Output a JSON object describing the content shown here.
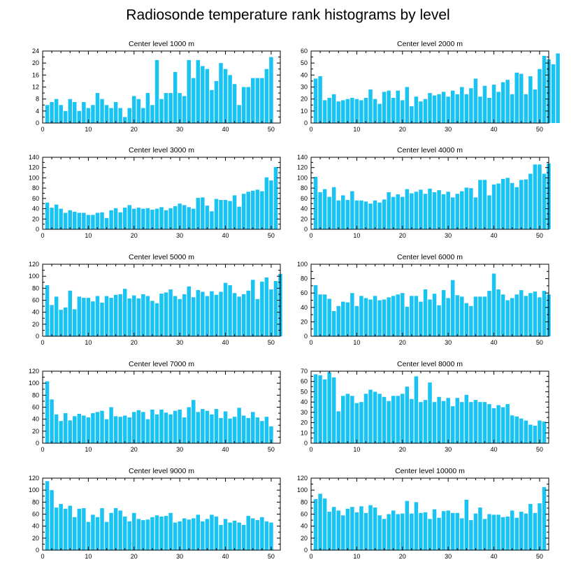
{
  "figure": {
    "title": "Radiosonde temperature rank histograms by level"
  },
  "colors": {
    "bar": "#1ac4f2",
    "axis": "#000000",
    "background": "#ffffff"
  },
  "chart_data": [
    {
      "type": "bar",
      "title": "Center level 1000 m",
      "x_ticks": [
        0,
        10,
        20,
        30,
        40,
        50
      ],
      "y_ticks": [
        0,
        4,
        8,
        12,
        16,
        20,
        24
      ],
      "xlim": [
        0,
        52
      ],
      "ylim": [
        0,
        24
      ],
      "values": [
        6,
        7,
        8,
        6,
        4,
        8,
        7,
        4,
        7,
        5,
        6,
        10,
        8,
        6,
        5,
        7,
        5,
        2,
        5,
        9,
        8,
        5,
        10,
        6,
        21,
        8,
        10,
        10,
        17,
        10,
        9,
        21,
        15,
        21,
        19,
        18,
        11,
        14,
        20,
        18,
        16,
        13,
        6,
        12,
        12,
        15,
        15,
        15,
        18,
        22
      ]
    },
    {
      "type": "bar",
      "title": "Center level 2000 m",
      "x_ticks": [
        0,
        10,
        20,
        30,
        40,
        50
      ],
      "y_ticks": [
        0,
        10,
        20,
        30,
        40,
        50,
        60
      ],
      "xlim": [
        0,
        52
      ],
      "ylim": [
        0,
        60
      ],
      "values": [
        37,
        39,
        19,
        21,
        24,
        18,
        19,
        20,
        21,
        20,
        19,
        21,
        28,
        20,
        16,
        26,
        27,
        21,
        27,
        19,
        30,
        14,
        22,
        18,
        20,
        25,
        23,
        24,
        26,
        22,
        27,
        24,
        30,
        24,
        29,
        37,
        22,
        31,
        21,
        32,
        26,
        34,
        36,
        24,
        42,
        41,
        24,
        39,
        28,
        45,
        56,
        53,
        49,
        58
      ]
    },
    {
      "type": "bar",
      "title": "Center level 3000 m",
      "x_ticks": [
        0,
        10,
        20,
        30,
        40,
        50
      ],
      "y_ticks": [
        0,
        20,
        40,
        60,
        80,
        100,
        120,
        140
      ],
      "xlim": [
        0,
        52
      ],
      "ylim": [
        0,
        140
      ],
      "values": [
        52,
        42,
        48,
        40,
        32,
        37,
        34,
        32,
        32,
        28,
        28,
        32,
        33,
        22,
        37,
        41,
        33,
        42,
        47,
        40,
        42,
        40,
        41,
        38,
        40,
        43,
        37,
        41,
        45,
        50,
        47,
        43,
        40,
        61,
        62,
        46,
        35,
        59,
        57,
        57,
        55,
        66,
        44,
        69,
        73,
        75,
        77,
        74,
        101,
        95,
        121
      ]
    },
    {
      "type": "bar",
      "title": "Center level 4000 m",
      "x_ticks": [
        0,
        10,
        20,
        30,
        40,
        50
      ],
      "y_ticks": [
        0,
        20,
        40,
        60,
        80,
        100,
        120,
        140
      ],
      "xlim": [
        0,
        52
      ],
      "ylim": [
        0,
        140
      ],
      "values": [
        102,
        72,
        78,
        63,
        82,
        56,
        66,
        57,
        74,
        56,
        56,
        54,
        50,
        56,
        52,
        58,
        72,
        63,
        68,
        63,
        78,
        70,
        73,
        77,
        69,
        79,
        72,
        76,
        68,
        73,
        62,
        69,
        74,
        81,
        80,
        62,
        96,
        96,
        66,
        87,
        89,
        98,
        100,
        90,
        82,
        96,
        97,
        108,
        126,
        126,
        108,
        128
      ]
    },
    {
      "type": "bar",
      "title": "Center level 5000 m",
      "x_ticks": [
        0,
        10,
        20,
        30,
        40,
        50
      ],
      "y_ticks": [
        0,
        20,
        40,
        60,
        80,
        100,
        120
      ],
      "xlim": [
        0,
        52
      ],
      "ylim": [
        0,
        120
      ],
      "values": [
        85,
        52,
        66,
        44,
        48,
        76,
        45,
        66,
        64,
        64,
        58,
        67,
        56,
        67,
        64,
        69,
        70,
        79,
        63,
        68,
        63,
        70,
        67,
        59,
        55,
        71,
        73,
        78,
        67,
        62,
        70,
        83,
        65,
        77,
        74,
        67,
        75,
        69,
        74,
        89,
        85,
        72,
        66,
        70,
        76,
        94,
        62,
        91,
        98,
        78,
        92,
        104
      ]
    },
    {
      "type": "bar",
      "title": "Center level 6000 m",
      "x_ticks": [
        0,
        10,
        20,
        30,
        40,
        50
      ],
      "y_ticks": [
        0,
        20,
        40,
        60,
        80,
        100
      ],
      "xlim": [
        0,
        52
      ],
      "ylim": [
        0,
        100
      ],
      "values": [
        71,
        58,
        58,
        52,
        35,
        42,
        48,
        47,
        60,
        42,
        56,
        53,
        51,
        56,
        50,
        51,
        54,
        56,
        58,
        60,
        41,
        56,
        56,
        48,
        65,
        51,
        59,
        43,
        64,
        53,
        78,
        57,
        55,
        46,
        42,
        55,
        55,
        55,
        63,
        87,
        65,
        58,
        50,
        53,
        58,
        64,
        56,
        60,
        62,
        54,
        63,
        58
      ]
    },
    {
      "type": "bar",
      "title": "Center level 7000 m",
      "x_ticks": [
        0,
        10,
        20,
        30,
        40,
        50
      ],
      "y_ticks": [
        0,
        20,
        40,
        60,
        80,
        100,
        120
      ],
      "xlim": [
        0,
        52
      ],
      "ylim": [
        0,
        120
      ],
      "values": [
        103,
        73,
        48,
        37,
        50,
        38,
        45,
        49,
        46,
        43,
        50,
        52,
        54,
        40,
        60,
        45,
        44,
        46,
        43,
        52,
        55,
        52,
        40,
        56,
        48,
        56,
        51,
        48,
        54,
        56,
        43,
        60,
        72,
        52,
        57,
        54,
        48,
        57,
        42,
        53,
        41,
        44,
        59,
        46,
        42,
        52,
        43,
        37,
        44,
        28
      ]
    },
    {
      "type": "bar",
      "title": "Center level 8000 m",
      "x_ticks": [
        0,
        10,
        20,
        30,
        40,
        50
      ],
      "y_ticks": [
        0,
        10,
        20,
        30,
        40,
        50,
        60,
        70
      ],
      "xlim": [
        0,
        52
      ],
      "ylim": [
        0,
        70
      ],
      "values": [
        67,
        66,
        62,
        69,
        64,
        31,
        46,
        48,
        46,
        39,
        40,
        48,
        52,
        50,
        48,
        45,
        41,
        46,
        46,
        48,
        55,
        43,
        65,
        40,
        42,
        59,
        40,
        45,
        41,
        44,
        36,
        44,
        40,
        47,
        40,
        42,
        40,
        40,
        38,
        34,
        37,
        35,
        38,
        27,
        26,
        24,
        22,
        18,
        17,
        22,
        21
      ]
    },
    {
      "type": "bar",
      "title": "Center level 9000 m",
      "x_ticks": [
        0,
        10,
        20,
        30,
        40,
        50
      ],
      "y_ticks": [
        0,
        20,
        40,
        60,
        80,
        100,
        120
      ],
      "xlim": [
        0,
        52
      ],
      "ylim": [
        0,
        120
      ],
      "values": [
        115,
        100,
        71,
        77,
        69,
        74,
        55,
        69,
        70,
        47,
        59,
        55,
        70,
        47,
        62,
        70,
        66,
        56,
        48,
        62,
        52,
        50,
        51,
        55,
        58,
        56,
        57,
        62,
        46,
        48,
        53,
        51,
        53,
        59,
        48,
        52,
        59,
        56,
        42,
        52,
        46,
        49,
        46,
        42,
        57,
        53,
        50,
        55,
        48,
        46
      ]
    },
    {
      "type": "bar",
      "title": "Center level 10000 m",
      "x_ticks": [
        0,
        10,
        20,
        30,
        40,
        50
      ],
      "y_ticks": [
        0,
        20,
        40,
        60,
        80,
        100,
        120
      ],
      "xlim": [
        0,
        52
      ],
      "ylim": [
        0,
        120
      ],
      "values": [
        85,
        94,
        86,
        64,
        72,
        66,
        58,
        69,
        72,
        63,
        73,
        62,
        75,
        71,
        58,
        52,
        60,
        66,
        60,
        61,
        82,
        61,
        80,
        62,
        63,
        52,
        68,
        54,
        65,
        66,
        62,
        62,
        53,
        84,
        50,
        61,
        71,
        52,
        60,
        59,
        59,
        55,
        56,
        66,
        54,
        64,
        61,
        77,
        62,
        78,
        105
      ]
    }
  ]
}
